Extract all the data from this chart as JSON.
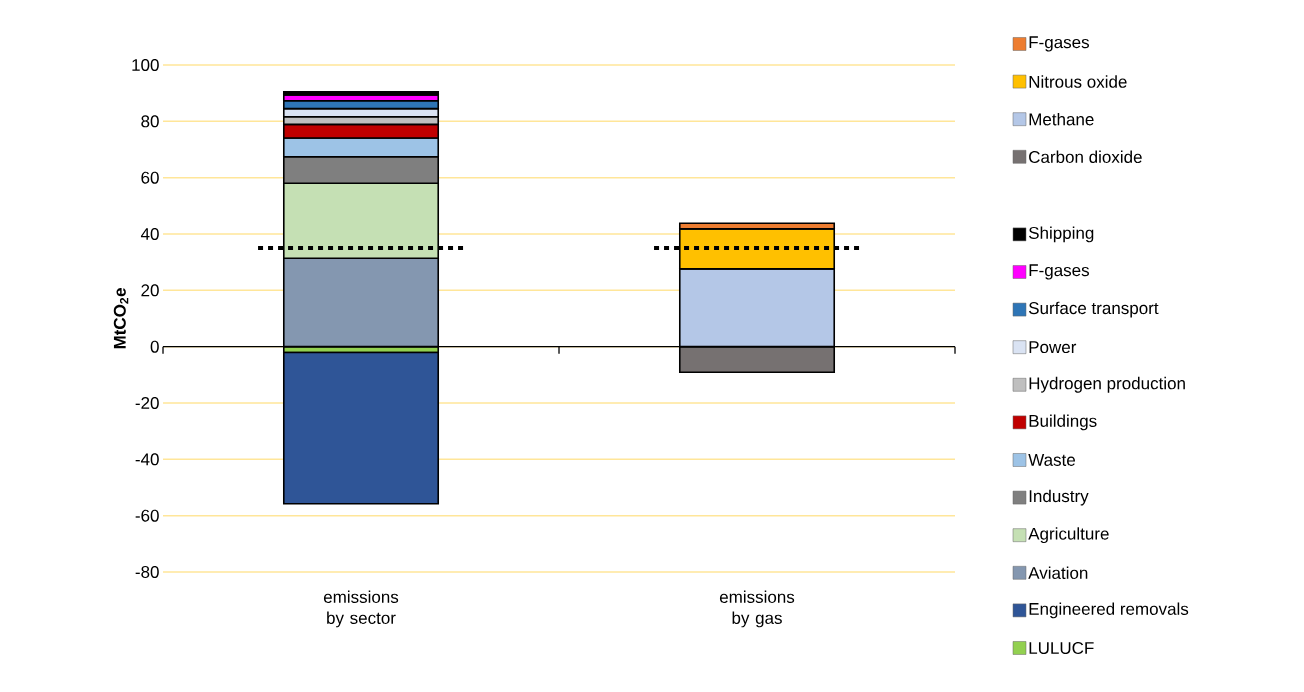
{
  "chart_data": {
    "type": "bar",
    "stacked": true,
    "ylabel": "MtCO$_{2}$e",
    "categories": [
      "emissions by sector",
      "emissions by gas"
    ],
    "series": [
      {
        "name": "LULUCF",
        "color": "#92d050",
        "values": [
          -2.1,
          null
        ]
      },
      {
        "name": "Engineered removals",
        "color": "#2f5597",
        "values": [
          -53.7,
          null
        ]
      },
      {
        "name": "Aviation",
        "color": "#8497b0",
        "values": [
          31.4,
          null
        ]
      },
      {
        "name": "Agriculture",
        "color": "#c5e0b4",
        "values": [
          26.6,
          null
        ]
      },
      {
        "name": "Industry",
        "color": "#7f7f7f",
        "values": [
          9.4,
          null
        ]
      },
      {
        "name": "Waste",
        "color": "#9dc3e6",
        "values": [
          6.7,
          null
        ]
      },
      {
        "name": "Buildings",
        "color": "#c00000",
        "values": [
          4.8,
          null
        ]
      },
      {
        "name": "Hydrogen production",
        "color": "#bfbfbf",
        "values": [
          2.7,
          null
        ]
      },
      {
        "name": "Power",
        "color": "#dae3f3",
        "values": [
          2.9,
          null
        ]
      },
      {
        "name": "Surface transport",
        "color": "#2e75b6",
        "values": [
          2.8,
          null
        ]
      },
      {
        "name": "F-gases",
        "color": "#ff00ff",
        "values": [
          2.1,
          null
        ]
      },
      {
        "name": "Shipping",
        "color": "#000000",
        "values": [
          1.1,
          null
        ]
      },
      {
        "name": "Carbon dioxide",
        "color": "#767171",
        "values": [
          null,
          -9.1
        ]
      },
      {
        "name": "Methane",
        "color": "#b4c7e7",
        "values": [
          null,
          27.6
        ]
      },
      {
        "name": "Nitrous oxide",
        "color": "#ffc000",
        "values": [
          null,
          14.2
        ]
      },
      {
        "name": "F-gases",
        "color": "#ed7d31",
        "values": [
          null,
          2.0
        ]
      }
    ],
    "ylim": [
      -80,
      100
    ],
    "yticks": [
      -80,
      -60,
      -40,
      -20,
      0,
      20,
      40,
      60,
      80,
      100
    ],
    "grid": "y",
    "legend": "right",
    "ref_lines": [
      {
        "axis": "y",
        "value": 35,
        "line_style": "dotted",
        "color": "#000000"
      }
    ]
  }
}
